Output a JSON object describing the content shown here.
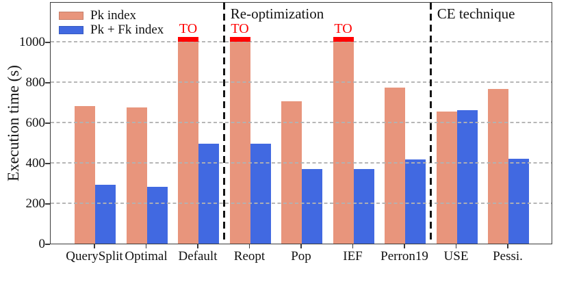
{
  "chart_data": {
    "type": "bar",
    "ylabel": "Execution time (s)",
    "ylim": [
      0,
      1200
    ],
    "yticks": [
      0,
      200,
      400,
      600,
      800,
      1000
    ],
    "grid": "horizontal dashed, drawn over bars",
    "categories": [
      "QuerySplit",
      "Optimal",
      "Default",
      "Reopt",
      "Pop",
      "IEF",
      "Perron19",
      "USE",
      "Pessi."
    ],
    "series": [
      {
        "name": "Pk index",
        "color": "#E8957C",
        "values": [
          680,
          673,
          1000,
          1000,
          705,
          1000,
          772,
          653,
          766
        ]
      },
      {
        "name": "Pk + Fk index",
        "color": "#4169E1",
        "values": [
          293,
          281,
          495,
          494,
          369,
          369,
          417,
          662,
          419
        ]
      }
    ],
    "timeout": {
      "label": "TO",
      "color": "#FF0000",
      "series": "Pk index",
      "category_indices": [
        2,
        3,
        5
      ],
      "meaning": "bar capped in red slightly above 1000"
    },
    "separators_after_category_index": [
      2,
      6
    ],
    "sections": [
      {
        "label": "",
        "categories": [
          "QuerySplit",
          "Optimal",
          "Default"
        ]
      },
      {
        "label": "Re-optimization",
        "categories": [
          "Reopt",
          "Pop",
          "IEF",
          "Perron19"
        ]
      },
      {
        "label": "CE technique",
        "categories": [
          "USE",
          "Pessi."
        ]
      }
    ],
    "legend": {
      "position": "top-left",
      "entries": [
        "Pk index",
        "Pk + Fk index"
      ]
    },
    "colors": {
      "grid": "#B2B2B2",
      "separator": "#141414",
      "axis": "#3A3A3A",
      "text": "#111111"
    }
  }
}
